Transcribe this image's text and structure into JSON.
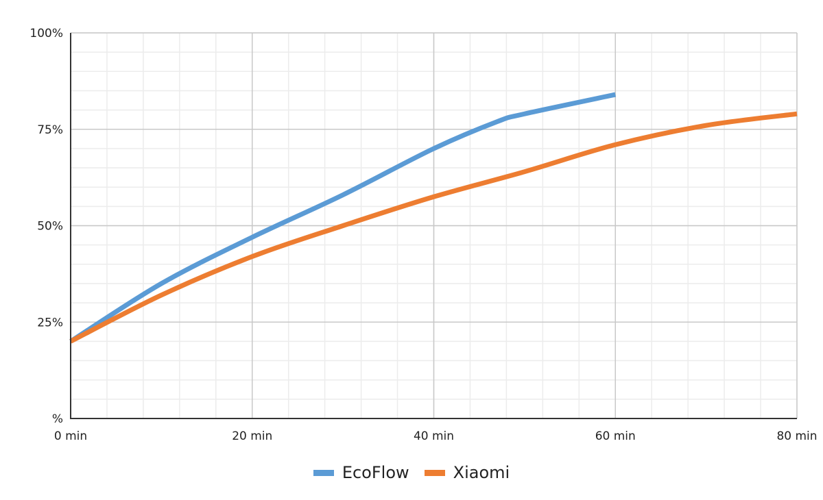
{
  "chart_data": {
    "type": "line",
    "title": "",
    "xlabel": "",
    "ylabel": "",
    "xlim": [
      0,
      80
    ],
    "ylim": [
      0,
      100
    ],
    "x_ticks": [
      0,
      20,
      40,
      60,
      80
    ],
    "x_tick_labels": [
      "0 min",
      "20 min",
      "40 min",
      "60 min",
      "80 min"
    ],
    "y_ticks": [
      0,
      25,
      50,
      75,
      100
    ],
    "y_tick_labels": [
      "%",
      "25%",
      "50%",
      "75%",
      "100%"
    ],
    "grid": {
      "major": true,
      "minor": true,
      "x_minor_step": 4,
      "y_minor_step": 5
    },
    "legend_position": "bottom",
    "series": [
      {
        "name": "EcoFlow",
        "color": "#5B9BD5",
        "x": [
          0,
          10,
          20,
          30,
          40,
          47,
          50,
          60
        ],
        "values": [
          20,
          35,
          47,
          58,
          70,
          77,
          79,
          84
        ]
      },
      {
        "name": "Xiaomi",
        "color": "#ED7D31",
        "x": [
          0,
          10,
          20,
          30,
          40,
          50,
          60,
          70,
          80
        ],
        "values": [
          20,
          32,
          42,
          50,
          57.5,
          64,
          71,
          76,
          79
        ]
      }
    ]
  },
  "legend": {
    "items": [
      {
        "label": "EcoFlow",
        "color": "#5B9BD5"
      },
      {
        "label": "Xiaomi",
        "color": "#ED7D31"
      }
    ]
  },
  "colors": {
    "axis": "#333333",
    "major_grid": "#c8c8c8",
    "minor_grid": "#ececec"
  }
}
